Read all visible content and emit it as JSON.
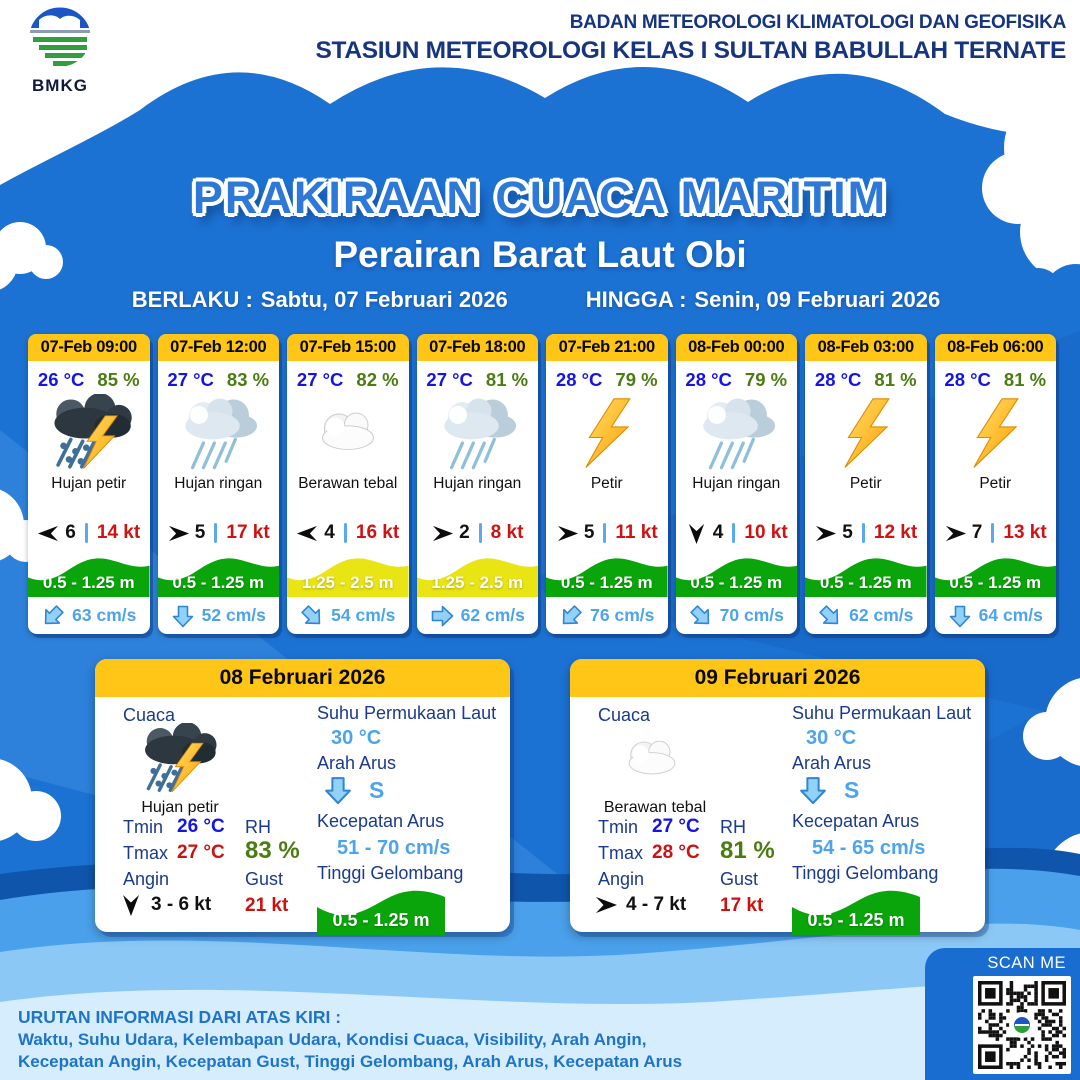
{
  "header": {
    "logo_text": "BMKG",
    "agency_line1": "BADAN METEOROLOGI KLIMATOLOGI DAN GEOFISIKA",
    "agency_line2": "STASIUN METEOROLOGI KELAS I SULTAN BABULLAH TERNATE"
  },
  "title": "PRAKIRAAN CUACA MARITIM",
  "subtitle": "Perairan Barat Laut Obi",
  "validity": {
    "berlaku_label": "BERLAKU :",
    "berlaku_value": "Sabtu, 07 Februari 2026",
    "hingga_label": "HINGGA :",
    "hingga_value": "Senin, 09 Februari 2026"
  },
  "hourly": [
    {
      "time": "07-Feb 09:00",
      "temp": "26 °C",
      "rh": "85 %",
      "icon": "storm",
      "condition": "Hujan petir",
      "visibility": "6",
      "wind_speed": "14 kt",
      "wind_dir_deg": 180,
      "wave": "0.5 - 1.25 m",
      "wave_hex": "#0aa50a",
      "current": "63 cm/s",
      "current_dir_deg": 45
    },
    {
      "time": "07-Feb 12:00",
      "temp": "27 °C",
      "rh": "83 %",
      "icon": "rain",
      "condition": "Hujan ringan",
      "visibility": "5",
      "wind_speed": "17 kt",
      "wind_dir_deg": 0,
      "wave": "0.5 - 1.25 m",
      "wave_hex": "#0aa50a",
      "current": "52 cm/s",
      "current_dir_deg": 0
    },
    {
      "time": "07-Feb 15:00",
      "temp": "27 °C",
      "rh": "82 %",
      "icon": "cloud",
      "condition": "Berawan tebal",
      "visibility": "4",
      "wind_speed": "16 kt",
      "wind_dir_deg": 180,
      "wave": "1.25 - 2.5 m",
      "wave_hex": "#e9e414",
      "current": "54 cm/s",
      "current_dir_deg": -45
    },
    {
      "time": "07-Feb 18:00",
      "temp": "27 °C",
      "rh": "81 %",
      "icon": "rain",
      "condition": "Hujan ringan",
      "visibility": "2",
      "wind_speed": "8 kt",
      "wind_dir_deg": 0,
      "wave": "1.25 - 2.5 m",
      "wave_hex": "#e9e414",
      "current": "62 cm/s",
      "current_dir_deg": -90
    },
    {
      "time": "07-Feb 21:00",
      "temp": "28 °C",
      "rh": "79 %",
      "icon": "bolt",
      "condition": "Petir",
      "visibility": "5",
      "wind_speed": "11 kt",
      "wind_dir_deg": 0,
      "wave": "0.5 - 1.25 m",
      "wave_hex": "#0aa50a",
      "current": "76 cm/s",
      "current_dir_deg": 45
    },
    {
      "time": "08-Feb 00:00",
      "temp": "28 °C",
      "rh": "79 %",
      "icon": "rain",
      "condition": "Hujan ringan",
      "visibility": "4",
      "wind_speed": "10 kt",
      "wind_dir_deg": 90,
      "wave": "0.5 - 1.25 m",
      "wave_hex": "#0aa50a",
      "current": "70 cm/s",
      "current_dir_deg": -45
    },
    {
      "time": "08-Feb 03:00",
      "temp": "28 °C",
      "rh": "81 %",
      "icon": "bolt",
      "condition": "Petir",
      "visibility": "5",
      "wind_speed": "12 kt",
      "wind_dir_deg": 0,
      "wave": "0.5 - 1.25 m",
      "wave_hex": "#0aa50a",
      "current": "62 cm/s",
      "current_dir_deg": -45
    },
    {
      "time": "08-Feb 06:00",
      "temp": "28 °C",
      "rh": "81 %",
      "icon": "bolt",
      "condition": "Petir",
      "visibility": "7",
      "wind_speed": "13 kt",
      "wind_dir_deg": 0,
      "wave": "0.5 - 1.25 m",
      "wave_hex": "#0aa50a",
      "current": "64 cm/s",
      "current_dir_deg": 0
    }
  ],
  "daily_labels": {
    "cuaca": "Cuaca",
    "tmin": "Tmin",
    "tmax": "Tmax",
    "angin": "Angin",
    "rh": "RH",
    "gust": "Gust",
    "spl": "Suhu Permukaan Laut",
    "arah_arus": "Arah Arus",
    "kecepatan_arus": "Kecepatan Arus",
    "tinggi_gelombang": "Tinggi Gelombang"
  },
  "daily": [
    {
      "date": "08 Februari 2026",
      "icon": "storm",
      "condition": "Hujan petir",
      "tmin": "26 °C",
      "tmax": "27 °C",
      "wind": "3 - 6 kt",
      "wind_dir_deg": 90,
      "rh": "83 %",
      "gust": "21 kt",
      "spl": "30 °C",
      "arus_dir": "S",
      "arus_dir_deg": 0,
      "kec_arus": "51 - 70 cm/s",
      "wave": "0.5 - 1.25 m",
      "wave_hex": "#0aa50a"
    },
    {
      "date": "09 Februari 2026",
      "icon": "cloud",
      "condition": "Berawan tebal",
      "tmin": "27 °C",
      "tmax": "28 °C",
      "wind": "4 - 7 kt",
      "wind_dir_deg": 0,
      "rh": "81 %",
      "gust": "17 kt",
      "spl": "30 °C",
      "arus_dir": "S",
      "arus_dir_deg": 0,
      "kec_arus": "54 - 65 cm/s",
      "wave": "0.5 - 1.25 m",
      "wave_hex": "#0aa50a"
    }
  ],
  "footer": {
    "heading": "URUTAN INFORMASI DARI ATAS KIRI :",
    "line1": "Waktu, Suhu Udara, Kelembapan Udara, Kondisi Cuaca, Visibility, Arah Angin,",
    "line2": "Kecepatan Angin, Kecepatan Gust, Tinggi Gelombang, Arah Arus, Kecepatan Arus"
  },
  "scan_me": "SCAN ME",
  "colors": {
    "main_blue": "#1c72d3",
    "card_header_yellow": "#ffc517",
    "wave_green": "#0aa50a",
    "wave_yellow": "#e9e414",
    "temp_blue": "#1414e8",
    "rh_green": "#4b7c12",
    "speed_red": "#cc1111",
    "current_blue": "#4da4ec",
    "label_navy": "#1a3a8e"
  }
}
